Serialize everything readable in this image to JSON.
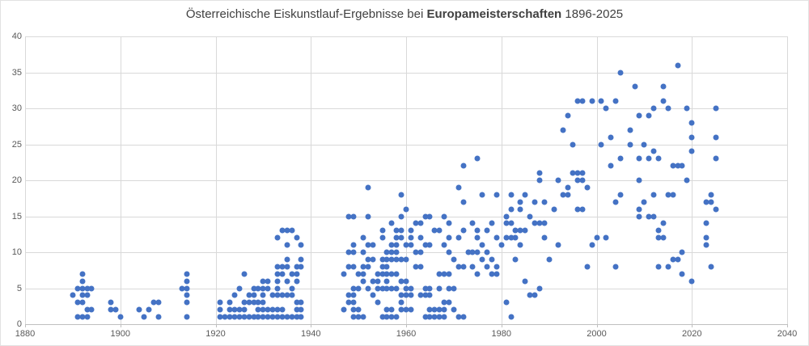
{
  "title": {
    "prefix": "Österreichische Eiskunstlauf-Ergebnisse bei ",
    "bold": "Europameisterschaften",
    "suffix": " 1896-2025"
  },
  "colors": {
    "point": "#4472c4",
    "gridline": "#d9d9d9",
    "axis_line": "#bfbfbf",
    "tick_label": "#595959",
    "title_text": "#404040",
    "background": "#ffffff"
  },
  "chart_data": {
    "type": "scatter",
    "title": "Österreichische Eiskunstlauf-Ergebnisse bei Europameisterschaften 1896-2025",
    "xlabel": "",
    "ylabel": "",
    "grid": true,
    "legend": false,
    "x_axis": {
      "min": 1880,
      "max": 2040,
      "step": 20
    },
    "y_axis": {
      "min": 0,
      "max": 40,
      "step": 5
    },
    "points": [
      [
        1890,
        4
      ],
      [
        1891,
        5
      ],
      [
        1891,
        3
      ],
      [
        1891,
        1
      ],
      [
        1892,
        7
      ],
      [
        1892,
        6
      ],
      [
        1892,
        5
      ],
      [
        1892,
        4
      ],
      [
        1892,
        3
      ],
      [
        1892,
        1
      ],
      [
        1893,
        5
      ],
      [
        1893,
        4
      ],
      [
        1893,
        2
      ],
      [
        1893,
        1
      ],
      [
        1894,
        5
      ],
      [
        1894,
        2
      ],
      [
        1898,
        3
      ],
      [
        1898,
        2
      ],
      [
        1899,
        2
      ],
      [
        1900,
        1
      ],
      [
        1904,
        2
      ],
      [
        1905,
        1
      ],
      [
        1906,
        2
      ],
      [
        1907,
        3
      ],
      [
        1908,
        3
      ],
      [
        1908,
        1
      ],
      [
        1913,
        5
      ],
      [
        1914,
        7
      ],
      [
        1914,
        6
      ],
      [
        1914,
        5
      ],
      [
        1914,
        4
      ],
      [
        1914,
        3
      ],
      [
        1914,
        1
      ],
      [
        1921,
        1
      ],
      [
        1921,
        2
      ],
      [
        1921,
        3
      ],
      [
        1922,
        1
      ],
      [
        1923,
        1
      ],
      [
        1923,
        2
      ],
      [
        1923,
        3
      ],
      [
        1924,
        1
      ],
      [
        1924,
        2
      ],
      [
        1924,
        4
      ],
      [
        1925,
        1
      ],
      [
        1925,
        2
      ],
      [
        1925,
        5
      ],
      [
        1926,
        1
      ],
      [
        1926,
        2
      ],
      [
        1926,
        3
      ],
      [
        1926,
        7
      ],
      [
        1927,
        1
      ],
      [
        1927,
        3
      ],
      [
        1927,
        4
      ],
      [
        1928,
        1
      ],
      [
        1928,
        3
      ],
      [
        1928,
        4
      ],
      [
        1928,
        5
      ],
      [
        1929,
        1
      ],
      [
        1929,
        2
      ],
      [
        1929,
        3
      ],
      [
        1929,
        5
      ],
      [
        1930,
        1
      ],
      [
        1930,
        2
      ],
      [
        1930,
        3
      ],
      [
        1930,
        4
      ],
      [
        1930,
        5
      ],
      [
        1930,
        6
      ],
      [
        1931,
        1
      ],
      [
        1931,
        2
      ],
      [
        1931,
        5
      ],
      [
        1931,
        6
      ],
      [
        1932,
        1
      ],
      [
        1932,
        2
      ],
      [
        1932,
        4
      ],
      [
        1933,
        1
      ],
      [
        1933,
        2
      ],
      [
        1933,
        4
      ],
      [
        1933,
        5
      ],
      [
        1933,
        6
      ],
      [
        1933,
        7
      ],
      [
        1933,
        8
      ],
      [
        1933,
        12
      ],
      [
        1934,
        1
      ],
      [
        1934,
        2
      ],
      [
        1934,
        4
      ],
      [
        1934,
        7
      ],
      [
        1934,
        8
      ],
      [
        1934,
        13
      ],
      [
        1935,
        1
      ],
      [
        1935,
        4
      ],
      [
        1935,
        6
      ],
      [
        1935,
        8
      ],
      [
        1935,
        9
      ],
      [
        1935,
        11
      ],
      [
        1935,
        13
      ],
      [
        1936,
        1
      ],
      [
        1936,
        4
      ],
      [
        1936,
        5
      ],
      [
        1936,
        7
      ],
      [
        1936,
        13
      ],
      [
        1937,
        1
      ],
      [
        1937,
        2
      ],
      [
        1937,
        3
      ],
      [
        1937,
        6
      ],
      [
        1937,
        7
      ],
      [
        1937,
        8
      ],
      [
        1937,
        12
      ],
      [
        1938,
        1
      ],
      [
        1938,
        2
      ],
      [
        1938,
        3
      ],
      [
        1938,
        8
      ],
      [
        1938,
        9
      ],
      [
        1938,
        11
      ],
      [
        1947,
        2
      ],
      [
        1947,
        7
      ],
      [
        1948,
        3
      ],
      [
        1948,
        4
      ],
      [
        1948,
        8
      ],
      [
        1948,
        10
      ],
      [
        1948,
        15
      ],
      [
        1949,
        1
      ],
      [
        1949,
        2
      ],
      [
        1949,
        3
      ],
      [
        1949,
        4
      ],
      [
        1949,
        5
      ],
      [
        1949,
        8
      ],
      [
        1949,
        10
      ],
      [
        1949,
        11
      ],
      [
        1949,
        15
      ],
      [
        1950,
        1
      ],
      [
        1950,
        2
      ],
      [
        1950,
        5
      ],
      [
        1950,
        7
      ],
      [
        1951,
        1
      ],
      [
        1951,
        6
      ],
      [
        1951,
        7
      ],
      [
        1951,
        8
      ],
      [
        1951,
        10
      ],
      [
        1951,
        12
      ],
      [
        1952,
        5
      ],
      [
        1952,
        8
      ],
      [
        1952,
        9
      ],
      [
        1952,
        11
      ],
      [
        1952,
        15
      ],
      [
        1952,
        19
      ],
      [
        1953,
        4
      ],
      [
        1953,
        6
      ],
      [
        1953,
        9
      ],
      [
        1953,
        11
      ],
      [
        1954,
        3
      ],
      [
        1954,
        5
      ],
      [
        1954,
        6
      ],
      [
        1954,
        7
      ],
      [
        1955,
        1
      ],
      [
        1955,
        5
      ],
      [
        1955,
        7
      ],
      [
        1955,
        8
      ],
      [
        1955,
        9
      ],
      [
        1955,
        12
      ],
      [
        1955,
        13
      ],
      [
        1956,
        1
      ],
      [
        1956,
        2
      ],
      [
        1956,
        5
      ],
      [
        1956,
        6
      ],
      [
        1956,
        7
      ],
      [
        1956,
        8
      ],
      [
        1956,
        9
      ],
      [
        1956,
        10
      ],
      [
        1957,
        1
      ],
      [
        1957,
        2
      ],
      [
        1957,
        5
      ],
      [
        1957,
        7
      ],
      [
        1957,
        9
      ],
      [
        1957,
        10
      ],
      [
        1957,
        11
      ],
      [
        1957,
        14
      ],
      [
        1958,
        1
      ],
      [
        1958,
        5
      ],
      [
        1958,
        7
      ],
      [
        1958,
        9
      ],
      [
        1958,
        10
      ],
      [
        1958,
        11
      ],
      [
        1958,
        12
      ],
      [
        1958,
        13
      ],
      [
        1959,
        2
      ],
      [
        1959,
        3
      ],
      [
        1959,
        4
      ],
      [
        1959,
        6
      ],
      [
        1959,
        9
      ],
      [
        1959,
        12
      ],
      [
        1959,
        13
      ],
      [
        1959,
        15
      ],
      [
        1959,
        18
      ],
      [
        1960,
        2
      ],
      [
        1960,
        4
      ],
      [
        1960,
        5
      ],
      [
        1960,
        6
      ],
      [
        1960,
        9
      ],
      [
        1960,
        11
      ],
      [
        1960,
        16
      ],
      [
        1961,
        2
      ],
      [
        1961,
        4
      ],
      [
        1961,
        5
      ],
      [
        1961,
        11
      ],
      [
        1961,
        12
      ],
      [
        1961,
        13
      ],
      [
        1962,
        8
      ],
      [
        1962,
        10
      ],
      [
        1962,
        14
      ],
      [
        1963,
        4
      ],
      [
        1963,
        8
      ],
      [
        1963,
        10
      ],
      [
        1963,
        12
      ],
      [
        1963,
        14
      ],
      [
        1964,
        1
      ],
      [
        1964,
        4
      ],
      [
        1964,
        5
      ],
      [
        1964,
        11
      ],
      [
        1964,
        15
      ],
      [
        1965,
        1
      ],
      [
        1965,
        2
      ],
      [
        1965,
        4
      ],
      [
        1965,
        5
      ],
      [
        1965,
        11
      ],
      [
        1965,
        15
      ],
      [
        1966,
        1
      ],
      [
        1966,
        2
      ],
      [
        1966,
        13
      ],
      [
        1967,
        1
      ],
      [
        1967,
        2
      ],
      [
        1967,
        5
      ],
      [
        1967,
        7
      ],
      [
        1967,
        13
      ],
      [
        1968,
        1
      ],
      [
        1968,
        2
      ],
      [
        1968,
        3
      ],
      [
        1968,
        7
      ],
      [
        1968,
        11
      ],
      [
        1968,
        15
      ],
      [
        1969,
        3
      ],
      [
        1969,
        5
      ],
      [
        1969,
        7
      ],
      [
        1969,
        10
      ],
      [
        1969,
        12
      ],
      [
        1969,
        14
      ],
      [
        1970,
        2
      ],
      [
        1970,
        5
      ],
      [
        1970,
        9
      ],
      [
        1971,
        1
      ],
      [
        1971,
        8
      ],
      [
        1971,
        12
      ],
      [
        1971,
        19
      ],
      [
        1972,
        1
      ],
      [
        1972,
        8
      ],
      [
        1972,
        13
      ],
      [
        1972,
        17
      ],
      [
        1972,
        22
      ],
      [
        1973,
        10
      ],
      [
        1974,
        8
      ],
      [
        1974,
        10
      ],
      [
        1974,
        14
      ],
      [
        1975,
        7
      ],
      [
        1975,
        10
      ],
      [
        1975,
        12
      ],
      [
        1975,
        13
      ],
      [
        1975,
        23
      ],
      [
        1976,
        9
      ],
      [
        1976,
        11
      ],
      [
        1976,
        18
      ],
      [
        1977,
        8
      ],
      [
        1977,
        10
      ],
      [
        1977,
        13
      ],
      [
        1978,
        7
      ],
      [
        1978,
        9
      ],
      [
        1978,
        14
      ],
      [
        1979,
        7
      ],
      [
        1979,
        8
      ],
      [
        1979,
        12
      ],
      [
        1979,
        18
      ],
      [
        1980,
        11
      ],
      [
        1981,
        3
      ],
      [
        1981,
        12
      ],
      [
        1981,
        14
      ],
      [
        1981,
        15
      ],
      [
        1982,
        1
      ],
      [
        1982,
        12
      ],
      [
        1982,
        14
      ],
      [
        1982,
        16
      ],
      [
        1982,
        18
      ],
      [
        1983,
        9
      ],
      [
        1983,
        12
      ],
      [
        1983,
        13
      ],
      [
        1984,
        11
      ],
      [
        1984,
        13
      ],
      [
        1984,
        16
      ],
      [
        1984,
        17
      ],
      [
        1985,
        6
      ],
      [
        1985,
        13
      ],
      [
        1985,
        18
      ],
      [
        1986,
        4
      ],
      [
        1986,
        15
      ],
      [
        1987,
        4
      ],
      [
        1987,
        14
      ],
      [
        1987,
        17
      ],
      [
        1988,
        5
      ],
      [
        1988,
        14
      ],
      [
        1988,
        20
      ],
      [
        1988,
        21
      ],
      [
        1989,
        12
      ],
      [
        1989,
        14
      ],
      [
        1989,
        17
      ],
      [
        1990,
        9
      ],
      [
        1991,
        16
      ],
      [
        1992,
        11
      ],
      [
        1992,
        20
      ],
      [
        1993,
        18
      ],
      [
        1993,
        27
      ],
      [
        1994,
        18
      ],
      [
        1994,
        19
      ],
      [
        1994,
        29
      ],
      [
        1995,
        21
      ],
      [
        1995,
        25
      ],
      [
        1996,
        16
      ],
      [
        1996,
        20
      ],
      [
        1996,
        21
      ],
      [
        1996,
        31
      ],
      [
        1997,
        16
      ],
      [
        1997,
        20
      ],
      [
        1997,
        21
      ],
      [
        1997,
        31
      ],
      [
        1998,
        8
      ],
      [
        1998,
        19
      ],
      [
        1999,
        11
      ],
      [
        1999,
        31
      ],
      [
        2000,
        12
      ],
      [
        2001,
        25
      ],
      [
        2001,
        31
      ],
      [
        2002,
        12
      ],
      [
        2002,
        30
      ],
      [
        2003,
        22
      ],
      [
        2003,
        26
      ],
      [
        2004,
        8
      ],
      [
        2004,
        17
      ],
      [
        2004,
        31
      ],
      [
        2005,
        18
      ],
      [
        2005,
        23
      ],
      [
        2005,
        35
      ],
      [
        2007,
        25
      ],
      [
        2007,
        27
      ],
      [
        2008,
        33
      ],
      [
        2009,
        15
      ],
      [
        2009,
        16
      ],
      [
        2009,
        20
      ],
      [
        2009,
        23
      ],
      [
        2009,
        29
      ],
      [
        2010,
        17
      ],
      [
        2010,
        25
      ],
      [
        2011,
        15
      ],
      [
        2011,
        23
      ],
      [
        2011,
        29
      ],
      [
        2012,
        15
      ],
      [
        2012,
        18
      ],
      [
        2012,
        24
      ],
      [
        2012,
        30
      ],
      [
        2013,
        8
      ],
      [
        2013,
        12
      ],
      [
        2013,
        13
      ],
      [
        2013,
        23
      ],
      [
        2014,
        12
      ],
      [
        2014,
        14
      ],
      [
        2014,
        31
      ],
      [
        2014,
        33
      ],
      [
        2015,
        8
      ],
      [
        2015,
        18
      ],
      [
        2015,
        30
      ],
      [
        2016,
        9
      ],
      [
        2016,
        18
      ],
      [
        2016,
        22
      ],
      [
        2017,
        9
      ],
      [
        2017,
        22
      ],
      [
        2017,
        36
      ],
      [
        2018,
        7
      ],
      [
        2018,
        10
      ],
      [
        2018,
        22
      ],
      [
        2019,
        20
      ],
      [
        2019,
        30
      ],
      [
        2020,
        6
      ],
      [
        2020,
        24
      ],
      [
        2020,
        26
      ],
      [
        2020,
        28
      ],
      [
        2023,
        11
      ],
      [
        2023,
        12
      ],
      [
        2023,
        14
      ],
      [
        2023,
        17
      ],
      [
        2024,
        8
      ],
      [
        2024,
        17
      ],
      [
        2024,
        18
      ],
      [
        2025,
        16
      ],
      [
        2025,
        23
      ],
      [
        2025,
        26
      ],
      [
        2025,
        30
      ]
    ]
  }
}
